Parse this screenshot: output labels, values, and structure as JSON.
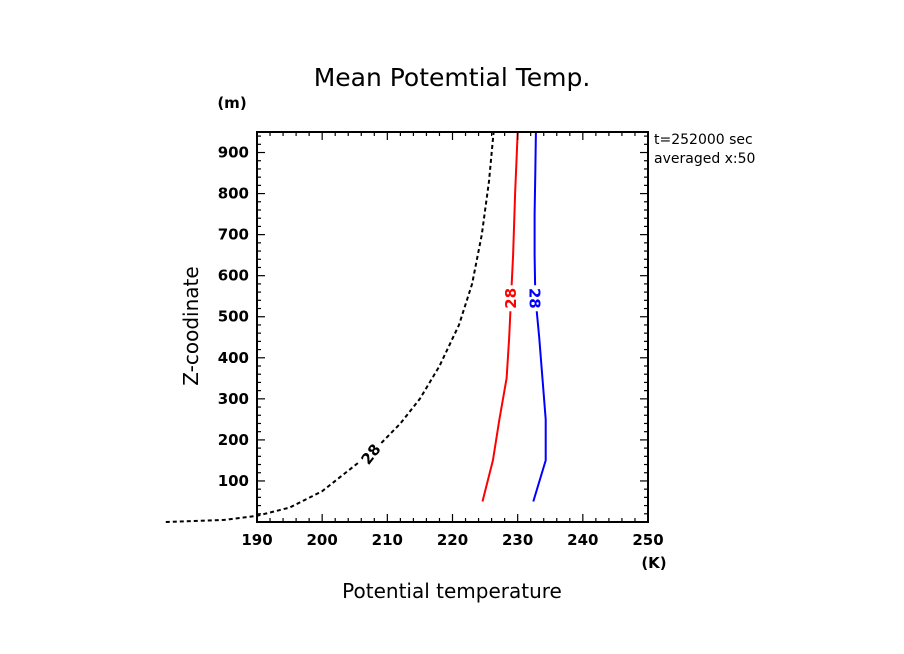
{
  "chart_data": {
    "type": "line",
    "title": "Mean Potemtial Temp.",
    "xlabel": "Potential temperature",
    "ylabel": "Z-coodinate",
    "x_unit": "(K)",
    "y_unit": "(m)",
    "xlim": [
      190,
      250
    ],
    "ylim": [
      0,
      950
    ],
    "xticks": [
      190,
      200,
      210,
      220,
      230,
      240,
      250
    ],
    "yticks": [
      100,
      200,
      300,
      400,
      500,
      600,
      700,
      800,
      900
    ],
    "annotations": [
      "t=252000 sec",
      "averaged  x:50"
    ],
    "series": [
      {
        "label": "28",
        "color": "#000000",
        "style": "dashed",
        "x": [
          176,
          185,
          190,
          195,
          200,
          204,
          208,
          212,
          215,
          218,
          221,
          223,
          224.5,
          225.6,
          226.3
        ],
        "y": [
          0,
          5,
          15,
          35,
          75,
          125,
          175,
          240,
          300,
          380,
          480,
          580,
          700,
          830,
          950
        ]
      },
      {
        "label": "28",
        "color": "#ff0000",
        "style": "solid",
        "x": [
          224.6,
          226.2,
          227.2,
          228.3,
          228.7,
          229.0,
          229.3,
          229.6,
          230.0
        ],
        "y": [
          50,
          150,
          250,
          350,
          450,
          550,
          650,
          800,
          950
        ]
      },
      {
        "label": "28",
        "color": "#0000ff",
        "style": "solid",
        "x": [
          232.4,
          234.3,
          234.3,
          233.3,
          232.7,
          232.6,
          232.6,
          232.7,
          232.8
        ],
        "y": [
          50,
          150,
          250,
          450,
          550,
          650,
          750,
          850,
          950
        ]
      }
    ]
  }
}
